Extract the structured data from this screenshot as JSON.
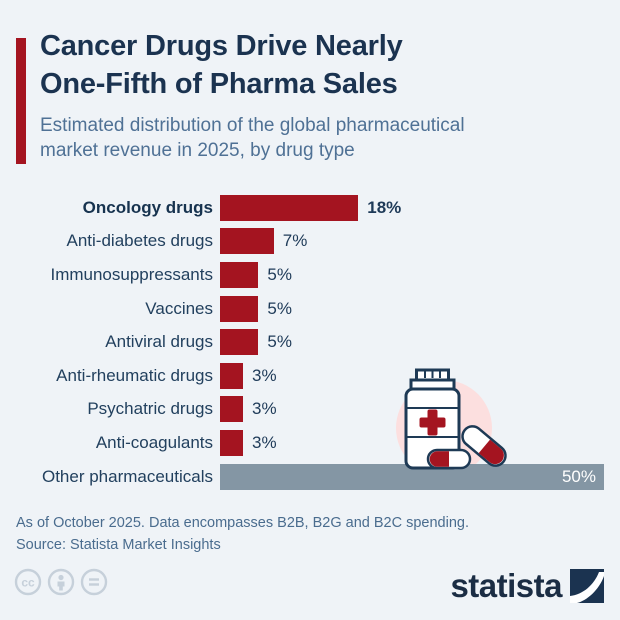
{
  "header": {
    "title_lines": [
      "Cancer Drugs Drive Nearly",
      "One-Fifth of Pharma Sales"
    ],
    "subtitle": "Estimated distribution of the global pharmaceutical market revenue in 2025, by drug type"
  },
  "chart_data": {
    "type": "bar",
    "orientation": "horizontal",
    "title": "Cancer Drugs Drive Nearly One-Fifth of Pharma Sales",
    "subtitle": "Estimated distribution of the global pharmaceutical market revenue in 2025, by drug type",
    "categories": [
      "Oncology drugs",
      "Anti-diabetes drugs",
      "Immunosuppressants",
      "Vaccines",
      "Antiviral drugs",
      "Anti-rheumatic drugs",
      "Psychatric drugs",
      "Anti-coagulants",
      "Other pharmaceuticals"
    ],
    "values": [
      18,
      7,
      5,
      5,
      5,
      3,
      3,
      3,
      50
    ],
    "value_labels": [
      "18%",
      "7%",
      "5%",
      "5%",
      "5%",
      "3%",
      "3%",
      "3%",
      "50%"
    ],
    "unit": "%",
    "xlim": [
      0,
      50
    ],
    "grid": false,
    "legend": false,
    "highlight_index": 0,
    "other_index": 8
  },
  "colors": {
    "accent_red": "#a41420",
    "other_gray": "#8496a4",
    "title_navy": "#1b3350",
    "subtitle_blue": "#4f7195",
    "footnote_blue": "#4a6c8e",
    "background": "#eff3f7",
    "illustration_pink": "#fcdfdf",
    "illustration_outline": "#1e3a55",
    "license_gray": "#c6d0da"
  },
  "illustration": {
    "name": "pill-bottle-with-capsules",
    "elements": [
      "pill-bottle",
      "red-cross-label",
      "capsule-horizontal",
      "capsule-diagonal",
      "pink-circle-background"
    ]
  },
  "footer": {
    "note": "As of October 2025. Data encompasses B2B, B2G and B2C spending.",
    "source": "Source: Statista Market Insights"
  },
  "branding": {
    "logo_text": "statista",
    "license_icons": [
      "cc-icon",
      "attribution-person-icon",
      "no-derivatives-equals-icon"
    ]
  }
}
